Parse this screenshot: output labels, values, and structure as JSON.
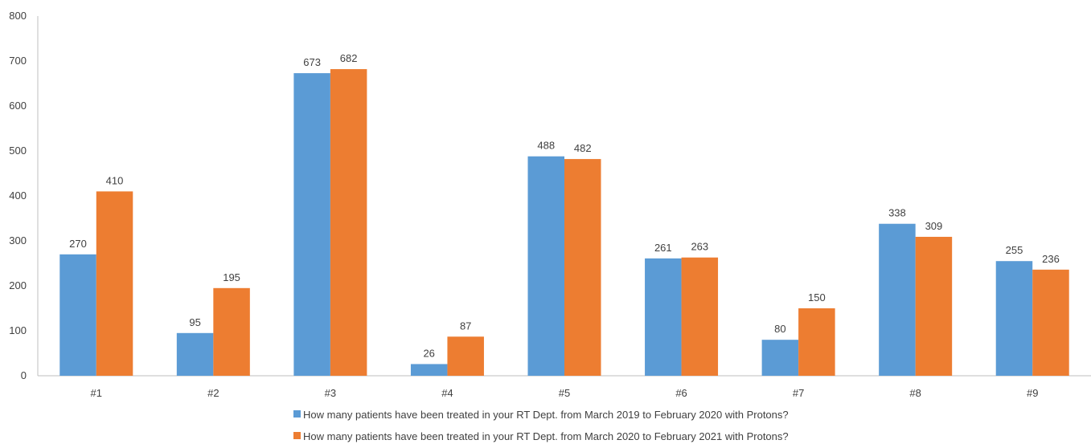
{
  "chart_data": {
    "type": "bar",
    "title": "",
    "xlabel": "",
    "ylabel": "",
    "categories": [
      "#1",
      "#2",
      "#3",
      "#4",
      "#5",
      "#6",
      "#7",
      "#8",
      "#9"
    ],
    "series": [
      {
        "name": "How many patients have been treated in your RT Dept. from March 2019 to February 2020 with Protons?",
        "color": "#5B9BD5",
        "values": [
          270,
          95,
          673,
          26,
          488,
          261,
          80,
          338,
          255
        ]
      },
      {
        "name": "How many patients have been treated in your RT Dept. from March 2020 to February 2021 with Protons?",
        "color": "#ED7D31",
        "values": [
          410,
          195,
          682,
          87,
          482,
          263,
          150,
          309,
          236
        ]
      }
    ],
    "ylim": [
      0,
      800
    ],
    "yticks": [
      0,
      100,
      200,
      300,
      400,
      500,
      600,
      700,
      800
    ],
    "grid": false,
    "data_labels": true,
    "legend_position": "bottom"
  }
}
